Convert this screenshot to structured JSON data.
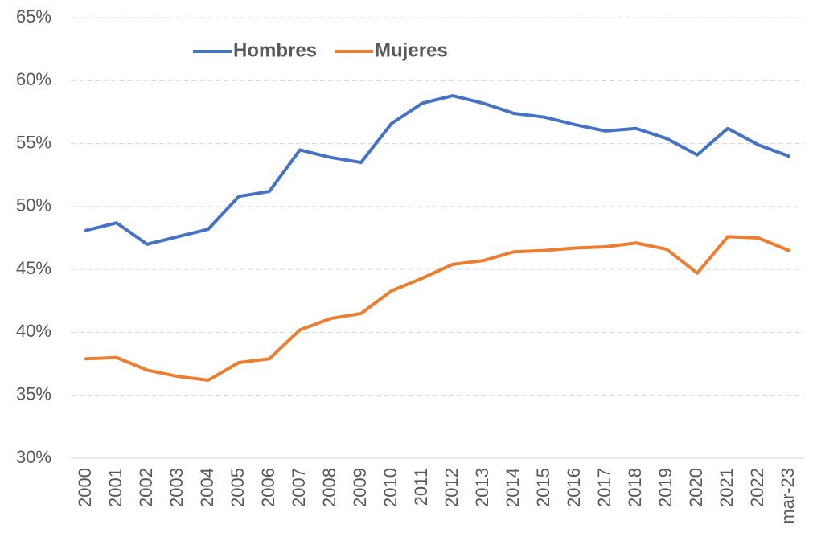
{
  "chart_data": {
    "type": "line",
    "categories": [
      "2000",
      "2001",
      "2002",
      "2003",
      "2004",
      "2005",
      "2006",
      "2007",
      "2008",
      "2009",
      "2010",
      "2011",
      "2012",
      "2013",
      "2014",
      "2015",
      "2016",
      "2017",
      "2018",
      "2019",
      "2020",
      "2021",
      "2022",
      "mar-23"
    ],
    "series": [
      {
        "name": "Hombres",
        "color": "#4472c4",
        "values": [
          48.1,
          48.7,
          47.0,
          47.6,
          48.2,
          50.8,
          51.2,
          54.5,
          53.9,
          53.5,
          56.6,
          58.2,
          58.8,
          58.2,
          57.4,
          57.1,
          56.5,
          56.0,
          56.2,
          55.4,
          54.1,
          56.2,
          54.9,
          54.0
        ]
      },
      {
        "name": "Mujeres",
        "color": "#ed7d31",
        "values": [
          37.9,
          38.0,
          37.0,
          36.5,
          36.2,
          37.6,
          37.9,
          40.2,
          41.1,
          41.5,
          43.3,
          44.3,
          45.4,
          45.7,
          46.4,
          46.5,
          46.7,
          46.8,
          47.1,
          46.6,
          44.7,
          47.6,
          47.5,
          46.5
        ]
      }
    ],
    "ylim": [
      30,
      65
    ],
    "yticks": [
      {
        "value": 30,
        "label": "30%"
      },
      {
        "value": 35,
        "label": "35%"
      },
      {
        "value": 40,
        "label": "40%"
      },
      {
        "value": 45,
        "label": "45%"
      },
      {
        "value": 50,
        "label": "50%"
      },
      {
        "value": 55,
        "label": "55%"
      },
      {
        "value": 60,
        "label": "60%"
      },
      {
        "value": 65,
        "label": "65%"
      }
    ],
    "grid": true,
    "legend": "top"
  }
}
